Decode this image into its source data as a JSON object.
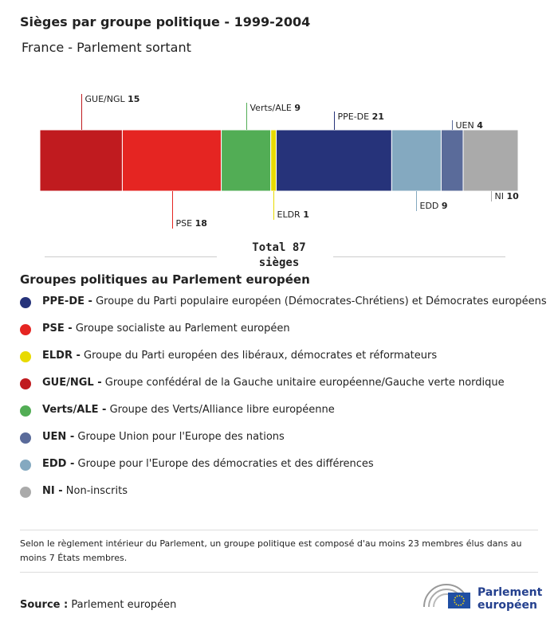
{
  "chart_data": {
    "type": "stacked_bar",
    "title": "Sièges par groupe politique - 1999-2004",
    "subtitle": "France - Parlement sortant",
    "categories": [
      "GUE/NGL",
      "PSE",
      "Verts/ALE",
      "ELDR",
      "PPE-DE",
      "EDD",
      "UEN",
      "NI"
    ],
    "values": [
      15,
      18,
      9,
      1,
      21,
      9,
      4,
      10
    ],
    "colors": [
      "#c01b1f",
      "#e52522",
      "#52ad55",
      "#e8da00",
      "#26337a",
      "#84a9c0",
      "#5a6b9a",
      "#aaaaaa"
    ],
    "total_label": "Total",
    "total": 87,
    "total_unit": "sièges",
    "legend_title": "Groupes politiques au Parlement européen",
    "legend": [
      {
        "abbr": "PPE-DE -",
        "text": "Groupe du Parti populaire européen (Démocrates-Chrétiens) et Démocrates européens",
        "color": "#26337a"
      },
      {
        "abbr": "PSE -",
        "text": "Groupe socialiste au Parlement européen",
        "color": "#e52522"
      },
      {
        "abbr": "ELDR -",
        "text": "Groupe du Parti européen des libéraux, démocrates et réformateurs",
        "color": "#e8da00"
      },
      {
        "abbr": "GUE/NGL -",
        "text": "Groupe confédéral de la Gauche unitaire européenne/Gauche verte nordique",
        "color": "#c01b1f"
      },
      {
        "abbr": "Verts/ALE -",
        "text": "Groupe des Verts/Alliance libre européenne",
        "color": "#52ad55"
      },
      {
        "abbr": "UEN -",
        "text": "Groupe Union pour l'Europe des nations",
        "color": "#5a6b9a"
      },
      {
        "abbr": "EDD -",
        "text": "Groupe pour l'Europe des démocraties et des différences",
        "color": "#84a9c0"
      },
      {
        "abbr": "NI -",
        "text": "Non-inscrits",
        "color": "#aaaaaa"
      }
    ],
    "note": "Selon le règlement intérieur du Parlement, un groupe politique est composé d'au moins 23 membres élus dans au moins 7 États membres.",
    "source_label": "Source :",
    "source": "Parlement européen",
    "logo": [
      "Parlement",
      "européen"
    ]
  }
}
